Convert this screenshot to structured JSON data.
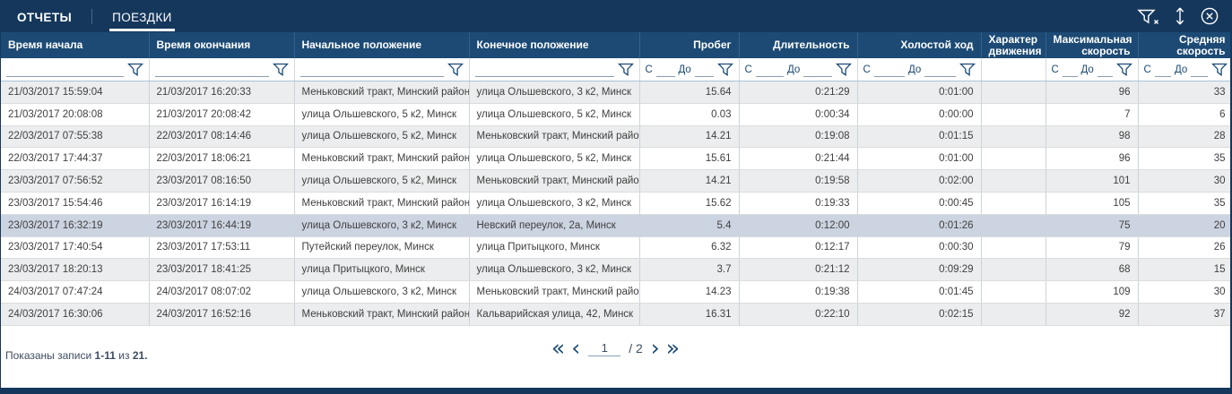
{
  "colors": {
    "navy_bar": "#15375c",
    "header_row": "#1c4a75",
    "selected_row": "#ccd3e1",
    "stripe_row": "#ebedee",
    "accent_icon": "#1b4a74"
  },
  "tabs": [
    {
      "label": "ОТЧЕТЫ",
      "active": false
    },
    {
      "label": "ПОЕЗДКИ",
      "active": true
    }
  ],
  "toolbar": {
    "icons": [
      "clear-filter-icon",
      "resize-vertical-icon",
      "close-icon"
    ]
  },
  "filter": {
    "from_label": "С",
    "to_label": "До",
    "funnel_icon": "funnel-icon"
  },
  "columns": [
    {
      "label": "Время начала",
      "align": "left",
      "filter": "text"
    },
    {
      "label": "Время окончания",
      "align": "left",
      "filter": "text"
    },
    {
      "label": "Начальное положение",
      "align": "left",
      "filter": "text"
    },
    {
      "label": "Конечное положение",
      "align": "left",
      "filter": "text"
    },
    {
      "label": "Пробег",
      "align": "right",
      "filter": "range"
    },
    {
      "label": "Длительность",
      "align": "right",
      "filter": "range"
    },
    {
      "label": "Холостой ход",
      "align": "right",
      "filter": "range"
    },
    {
      "label": "Характер движения",
      "align": "left",
      "filter": "none"
    },
    {
      "label": "Максимальная скорость",
      "align": "right",
      "filter": "range"
    },
    {
      "label": "Средняя скорость",
      "align": "right",
      "filter": "range"
    }
  ],
  "rows": [
    [
      "21/03/2017 15:59:04",
      "21/03/2017 16:20:33",
      "Меньковский тракт, Минский район",
      "улица Ольшевского, 3 к2, Минск",
      "15.64",
      "0:21:29",
      "0:01:00",
      "",
      "96",
      "33"
    ],
    [
      "21/03/2017 20:08:08",
      "21/03/2017 20:08:42",
      "улица Ольшевского, 5 к2, Минск",
      "улица Ольшевского, 5 к2, Минск",
      "0.03",
      "0:00:34",
      "0:00:00",
      "",
      "7",
      "6"
    ],
    [
      "22/03/2017 07:55:38",
      "22/03/2017 08:14:46",
      "улица Ольшевского, 5 к2, Минск",
      "Меньковский тракт, Минский район",
      "14.21",
      "0:19:08",
      "0:01:15",
      "",
      "98",
      "28"
    ],
    [
      "22/03/2017 17:44:37",
      "22/03/2017 18:06:21",
      "Меньковский тракт, Минский район",
      "улица Ольшевского, 5 к2, Минск",
      "15.61",
      "0:21:44",
      "0:01:00",
      "",
      "96",
      "35"
    ],
    [
      "23/03/2017 07:56:52",
      "23/03/2017 08:16:50",
      "улица Ольшевского, 5 к2, Минск",
      "Меньковский тракт, Минский район",
      "14.21",
      "0:19:58",
      "0:02:00",
      "",
      "101",
      "30"
    ],
    [
      "23/03/2017 15:54:46",
      "23/03/2017 16:14:19",
      "Меньковский тракт, Минский район",
      "улица Ольшевского, 3 к2, Минск",
      "15.62",
      "0:19:33",
      "0:00:45",
      "",
      "105",
      "35"
    ],
    [
      "23/03/2017 16:32:19",
      "23/03/2017 16:44:19",
      "улица Ольшевского, 3 к2, Минск",
      "Невский переулок, 2а, Минск",
      "5.4",
      "0:12:00",
      "0:01:26",
      "",
      "75",
      "20"
    ],
    [
      "23/03/2017 17:40:54",
      "23/03/2017 17:53:11",
      "Путейский переулок, Минск",
      "улица Притыцкого, Минск",
      "6.32",
      "0:12:17",
      "0:00:30",
      "",
      "79",
      "26"
    ],
    [
      "23/03/2017 18:20:13",
      "23/03/2017 18:41:25",
      "улица Притыцкого, Минск",
      "улица Ольшевского, 3 к2, Минск",
      "3.7",
      "0:21:12",
      "0:09:29",
      "",
      "68",
      "15"
    ],
    [
      "24/03/2017 07:47:24",
      "24/03/2017 08:07:02",
      "улица Ольшевского, 3 к2, Минск",
      "Меньковский тракт, Минский район",
      "14.23",
      "0:19:38",
      "0:01:45",
      "",
      "109",
      "30"
    ],
    [
      "24/03/2017 16:30:06",
      "24/03/2017 16:52:16",
      "Меньковский тракт, Минский район",
      "Кальварийская улица, 42, Минск",
      "16.31",
      "0:22:10",
      "0:02:15",
      "",
      "92",
      "37"
    ]
  ],
  "selected_row_index": 6,
  "footer": {
    "summary_prefix": "Показаны записи",
    "range": "1-11",
    "of_label": "из",
    "total": "21.",
    "pager": {
      "first": "«",
      "prev": "‹",
      "current": "1",
      "total_label": "/ 2",
      "next": "›",
      "last": "»"
    }
  }
}
